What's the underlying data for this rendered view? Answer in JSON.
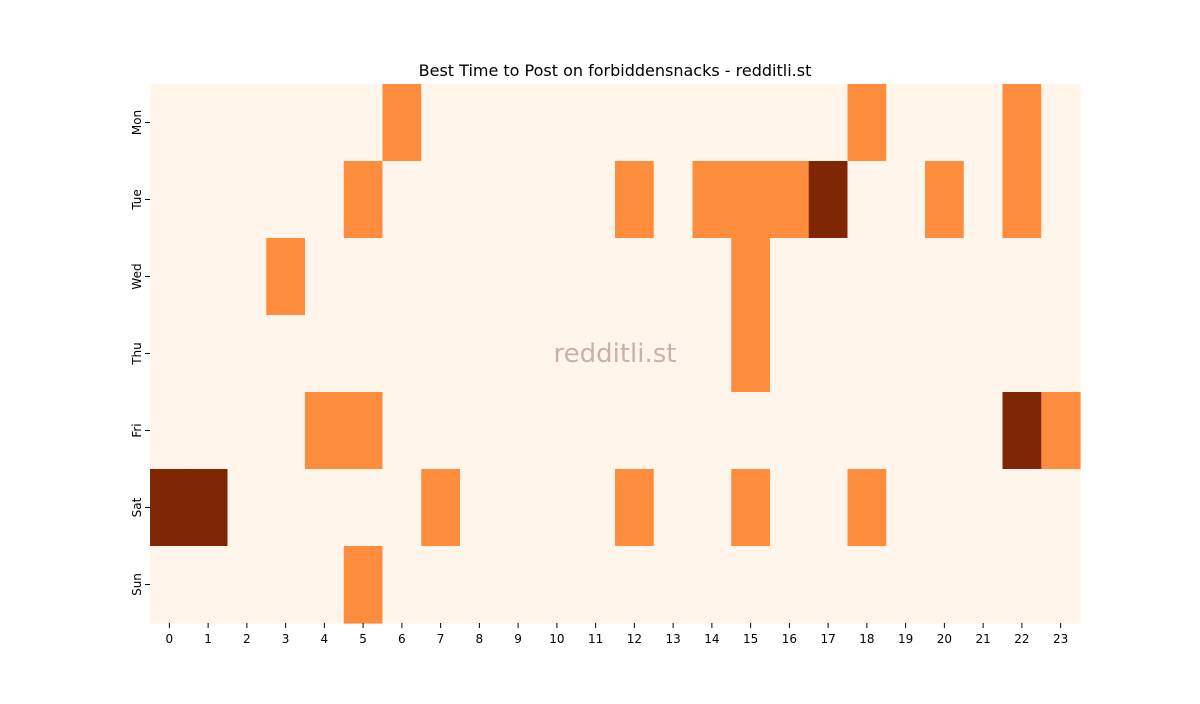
{
  "chart_data": {
    "type": "heatmap",
    "title": "Best Time to Post on forbiddensnacks - redditli.st",
    "watermark": "redditli.st",
    "xlabel": "",
    "ylabel": "",
    "x": [
      "0",
      "1",
      "2",
      "3",
      "4",
      "5",
      "6",
      "7",
      "8",
      "9",
      "10",
      "11",
      "12",
      "13",
      "14",
      "15",
      "16",
      "17",
      "18",
      "19",
      "20",
      "21",
      "22",
      "23"
    ],
    "y": [
      "Mon",
      "Tue",
      "Wed",
      "Thu",
      "Fri",
      "Sat",
      "Sun"
    ],
    "values": [
      [
        0,
        0,
        0,
        0,
        0,
        0,
        1,
        0,
        0,
        0,
        0,
        0,
        0,
        0,
        0,
        0,
        0,
        0,
        1,
        0,
        0,
        0,
        1,
        0
      ],
      [
        0,
        0,
        0,
        0,
        0,
        1,
        0,
        0,
        0,
        0,
        0,
        0,
        1,
        0,
        1,
        1,
        1,
        2,
        0,
        0,
        1,
        0,
        1,
        0
      ],
      [
        0,
        0,
        0,
        1,
        0,
        0,
        0,
        0,
        0,
        0,
        0,
        0,
        0,
        0,
        0,
        1,
        0,
        0,
        0,
        0,
        0,
        0,
        0,
        0
      ],
      [
        0,
        0,
        0,
        0,
        0,
        0,
        0,
        0,
        0,
        0,
        0,
        0,
        0,
        0,
        0,
        1,
        0,
        0,
        0,
        0,
        0,
        0,
        0,
        0
      ],
      [
        0,
        0,
        0,
        0,
        1,
        1,
        0,
        0,
        0,
        0,
        0,
        0,
        0,
        0,
        0,
        0,
        0,
        0,
        0,
        0,
        0,
        0,
        2,
        1
      ],
      [
        2,
        2,
        0,
        0,
        0,
        0,
        0,
        1,
        0,
        0,
        0,
        0,
        1,
        0,
        0,
        1,
        0,
        0,
        1,
        0,
        0,
        0,
        0,
        0
      ],
      [
        0,
        0,
        0,
        0,
        0,
        1,
        0,
        0,
        0,
        0,
        0,
        0,
        0,
        0,
        0,
        0,
        0,
        0,
        0,
        0,
        0,
        0,
        0,
        0
      ]
    ],
    "colormap": "Oranges",
    "colors": {
      "low": "#fff5eb",
      "mid": "#fd8d3c",
      "high": "#7f2704"
    },
    "grid": false,
    "colorbar": false
  }
}
